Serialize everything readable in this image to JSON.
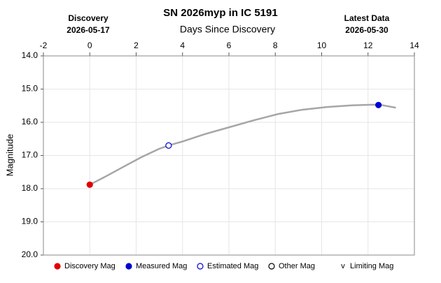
{
  "chart_data": {
    "type": "line",
    "title": "SN 2026myp in IC 5191",
    "x_label": "Days Since Discovery",
    "y_label": "Magnitude",
    "annotations": {
      "discovery": {
        "label": "Discovery",
        "date": "2026-05-17"
      },
      "latest": {
        "label": "Latest Data",
        "date": "2026-05-30"
      }
    },
    "xlim": [
      -2,
      14
    ],
    "xticks": [
      -2,
      0,
      2,
      4,
      6,
      8,
      10,
      12,
      14
    ],
    "ylim": [
      14,
      20
    ],
    "y_inverted": true,
    "yticks": [
      {
        "value": 14,
        "label": "14.0"
      },
      {
        "value": 15,
        "label": "15.0"
      },
      {
        "value": 16,
        "label": "16.0"
      },
      {
        "value": 17,
        "label": "17.0"
      },
      {
        "value": 18,
        "label": "18.0"
      },
      {
        "value": 19,
        "label": "19.0"
      },
      {
        "value": 20,
        "label": "20.0"
      }
    ],
    "grid": true,
    "legend": "bottom",
    "series": [
      {
        "color": "#a6a6a6",
        "marker": "none",
        "x": [
          0,
          0.72,
          1.48,
          2.23,
          2.99,
          3.44,
          4.04,
          4.95,
          6.01,
          7.07,
          8.13,
          9.18,
          10.24,
          11.3,
          12.11,
          12.5,
          13.2
        ],
        "values": [
          17.88,
          17.62,
          17.33,
          17.05,
          16.8,
          16.69,
          16.57,
          16.36,
          16.15,
          15.94,
          15.75,
          15.62,
          15.54,
          15.49,
          15.47,
          15.47,
          15.56
        ]
      },
      {
        "name": "Discovery Mag",
        "color": "#e00000",
        "marker": "filled",
        "x": [
          0
        ],
        "values": [
          17.88
        ]
      },
      {
        "name": "Measured Mag",
        "color": "#0000d0",
        "marker": "filled",
        "x": [
          12.45
        ],
        "values": [
          15.48
        ]
      },
      {
        "name": "Estimated Mag",
        "color": "#0000d0",
        "marker": "open",
        "x": [
          3.4
        ],
        "values": [
          16.7
        ]
      },
      {
        "name": "Other Mag",
        "color": "#000000",
        "marker": "open",
        "x": [],
        "values": []
      },
      {
        "name": "Limiting Mag",
        "color": "#000000",
        "marker": "v",
        "x": [],
        "values": []
      }
    ]
  }
}
